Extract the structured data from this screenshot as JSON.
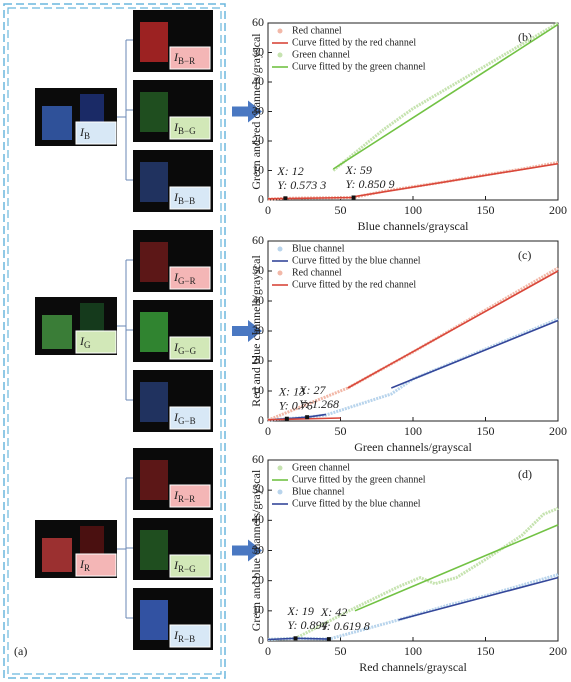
{
  "panel_a": {
    "label": "(a)",
    "sources": [
      {
        "main": "I",
        "sub": "B"
      },
      {
        "main": "I",
        "sub": "G"
      },
      {
        "main": "I",
        "sub": "R"
      }
    ],
    "outputs": [
      [
        {
          "main": "I",
          "sub": "B−R"
        },
        {
          "main": "I",
          "sub": "B−G"
        },
        {
          "main": "I",
          "sub": "B−B"
        }
      ],
      [
        {
          "main": "I",
          "sub": "G−R"
        },
        {
          "main": "I",
          "sub": "G−G"
        },
        {
          "main": "I",
          "sub": "G−B"
        }
      ],
      [
        {
          "main": "I",
          "sub": "R−R"
        },
        {
          "main": "I",
          "sub": "R−G"
        },
        {
          "main": "I",
          "sub": "R−B"
        }
      ]
    ]
  },
  "chart_data": [
    {
      "type": "line",
      "panel_label": "(b)",
      "x_label": "Blue channels/grayscal",
      "y_label": "Green and red channels/grayscal",
      "xlim": [
        0,
        200
      ],
      "ylim": [
        0,
        60
      ],
      "xticks": [
        0,
        50,
        100,
        150,
        200
      ],
      "yticks": [
        0,
        10,
        20,
        30,
        40,
        50,
        60
      ],
      "series": [
        {
          "name": "Red channel",
          "color": "#f2b8a8",
          "style": "markers",
          "x": [
            0,
            12,
            30,
            59,
            80,
            100,
            120,
            150,
            175,
            200
          ],
          "values": [
            0.3,
            0.57,
            0.7,
            0.85,
            3,
            4.5,
            6,
            8.5,
            10.5,
            12.7
          ]
        },
        {
          "name": "Curve fitted by the red channel",
          "color": "#d9473a",
          "style": "line",
          "x": [
            0,
            59,
            60,
            200
          ],
          "values": [
            0.4,
            0.85,
            1.2,
            12.3
          ]
        },
        {
          "name": "Green channel",
          "color": "#c6e3b0",
          "style": "markers",
          "x": [
            45,
            80,
            100,
            150,
            200
          ],
          "values": [
            10,
            24,
            31,
            45.5,
            60
          ]
        },
        {
          "name": "Curve fitted by the green channel",
          "color": "#72c244",
          "style": "line",
          "x": [
            45,
            200
          ],
          "values": [
            10.5,
            59.5
          ]
        }
      ],
      "annotations": [
        {
          "x_text": "X: 12",
          "y_text": "Y: 0.573 3",
          "x": 12,
          "y": 0.5733
        },
        {
          "x_text": "X: 59",
          "y_text": "Y: 0.850 9",
          "x": 59,
          "y": 0.8509
        }
      ]
    },
    {
      "type": "line",
      "panel_label": "(c)",
      "x_label": "Green channels/grayscal",
      "y_label": "Red and blue channels/grayscal",
      "xlim": [
        0,
        200
      ],
      "ylim": [
        0,
        60
      ],
      "xticks": [
        0,
        50,
        100,
        150,
        200
      ],
      "yticks": [
        0,
        10,
        20,
        30,
        40,
        50,
        60
      ],
      "series": [
        {
          "name": "Blue channel",
          "color": "#b8d4ec",
          "style": "markers",
          "x": [
            0,
            13,
            27,
            40,
            85,
            100,
            150,
            200
          ],
          "values": [
            0.3,
            0.76,
            1.27,
            2,
            9,
            14,
            24,
            34
          ]
        },
        {
          "name": "Curve fitted by the blue channel",
          "color": "#34479a",
          "style": "line",
          "x": [
            0,
            13,
            27,
            40,
            60,
            85,
            200
          ],
          "values": [
            0.4,
            0.76,
            1.27,
            2.2,
            null,
            11,
            33.5
          ]
        },
        {
          "name": "Red channel",
          "color": "#f2b8a8",
          "style": "markers",
          "x": [
            0,
            55,
            100,
            150,
            200
          ],
          "values": [
            0.3,
            11,
            23,
            37,
            51
          ]
        },
        {
          "name": "Curve fitted by the red channel",
          "color": "#d9473a",
          "style": "line",
          "x": [
            0,
            50,
            52,
            55,
            200
          ],
          "values": [
            0.4,
            1,
            null,
            11,
            50
          ]
        }
      ],
      "annotations": [
        {
          "x_text": "X: 13",
          "y_text": "Y: 0.76",
          "x": 13,
          "y": 0.76
        },
        {
          "x_text": "X: 27",
          "y_text": "Y: 1.268",
          "x": 27,
          "y": 1.268
        }
      ]
    },
    {
      "type": "line",
      "panel_label": "(d)",
      "x_label": "Red channels/grayscal",
      "y_label": "Green and blue channels/grayscal",
      "xlim": [
        0,
        200
      ],
      "ylim": [
        0,
        60
      ],
      "xticks": [
        0,
        50,
        100,
        150,
        200
      ],
      "yticks": [
        0,
        10,
        20,
        30,
        40,
        50,
        60
      ],
      "series": [
        {
          "name": "Green channel",
          "color": "#c6e3b0",
          "style": "markers",
          "x": [
            0,
            19,
            60,
            90,
            105,
            115,
            130,
            150,
            175,
            190,
            200
          ],
          "values": [
            0.5,
            0.89,
            11,
            18,
            21,
            19,
            21,
            27,
            35,
            42,
            44
          ]
        },
        {
          "name": "Curve fitted by the green channel",
          "color": "#72c244",
          "style": "line",
          "x": [
            60,
            200
          ],
          "values": [
            10,
            38.5
          ]
        },
        {
          "name": "Blue channel",
          "color": "#b8d4ec",
          "style": "markers",
          "x": [
            0,
            19,
            42,
            90,
            125,
            150,
            200
          ],
          "values": [
            0.5,
            0.89,
            0.62,
            7,
            12,
            15,
            22
          ]
        },
        {
          "name": "Curve fitted by the blue channel",
          "color": "#34479a",
          "style": "line",
          "x": [
            0,
            19,
            42,
            60,
            90,
            200
          ],
          "values": [
            0.5,
            0.89,
            0.62,
            null,
            7,
            21
          ]
        }
      ],
      "annotations": [
        {
          "x_text": "X: 19",
          "y_text": "Y: 0.894",
          "x": 19,
          "y": 0.894
        },
        {
          "x_text": "X: 42",
          "y_text": "Y: 0.619 8",
          "x": 42,
          "y": 0.6198
        }
      ]
    }
  ]
}
